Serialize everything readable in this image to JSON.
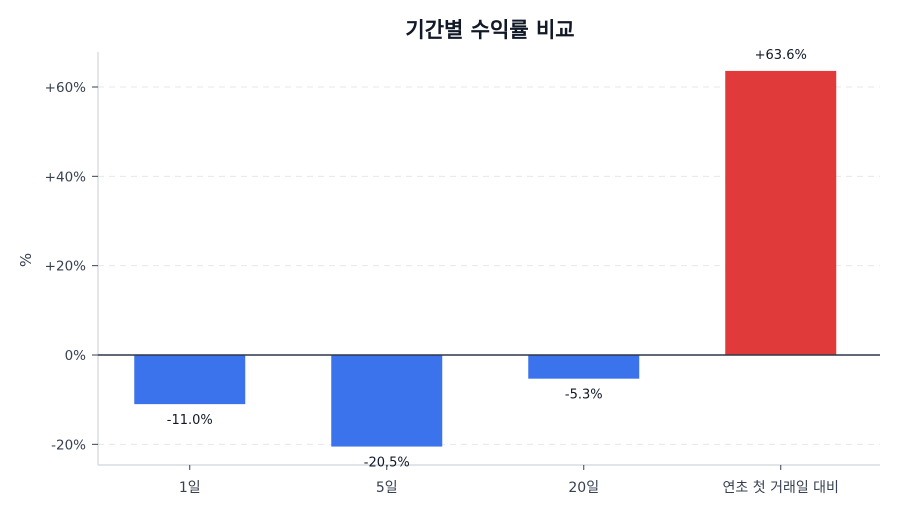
{
  "chart_data": {
    "type": "bar",
    "title": "기간별 수익률 비교",
    "xlabel": "",
    "ylabel": "%",
    "categories": [
      "1일",
      "5일",
      "20일",
      "연초 첫 거래일 대비"
    ],
    "values": [
      -11.0,
      -20.5,
      -5.3,
      63.6
    ],
    "value_labels": [
      "-11.0%",
      "-20.5%",
      "-5.3%",
      "+63.6%"
    ],
    "ylim": [
      -24.6,
      68
    ],
    "yticks": [
      -20,
      0,
      20,
      40,
      60
    ],
    "ytick_labels": [
      "-20%",
      "0%",
      "+20%",
      "+40%",
      "+60%"
    ],
    "grid": "y-dashed",
    "colors": {
      "negative": "#3b73ec",
      "positive": "#e03a3a",
      "zero_line": "#2d3748",
      "grid": "#e5e7eb",
      "axis": "#d1d5db"
    }
  }
}
